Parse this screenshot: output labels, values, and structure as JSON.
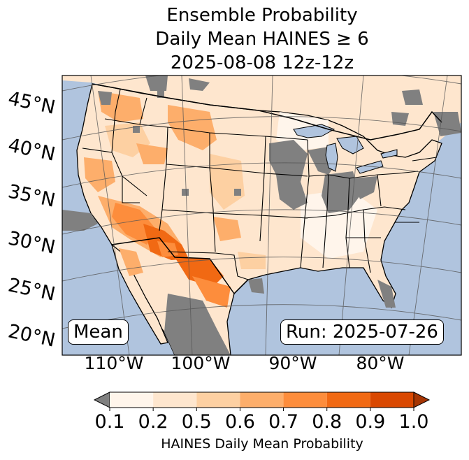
{
  "title": {
    "line1": "Ensemble Probability",
    "line2": "Daily Mean HAINES ≥ 6",
    "line3": "2025-08-08 12z-12z"
  },
  "map": {
    "region": "CONUS",
    "ocean_color": "#b0c4de",
    "missing_color": "#808080",
    "lat_labels": [
      "45°N",
      "40°N",
      "35°N",
      "30°N",
      "25°N",
      "20°N"
    ],
    "lon_labels": [
      "110°W",
      "100°W",
      "90°W",
      "80°W"
    ],
    "stat_label": "Mean",
    "run_label": "Run: 2025-07-26"
  },
  "colorbar": {
    "ticks": [
      "0.1",
      "0.2",
      "0.5",
      "0.6",
      "0.7",
      "0.8",
      "0.9",
      "1.0"
    ],
    "colors": [
      "#fff5eb",
      "#fee6ce",
      "#fdd0a2",
      "#fdae6b",
      "#fd8d3c",
      "#f16913",
      "#d94801"
    ],
    "under_color": "#808080",
    "over_color": "#a63603",
    "label": "HAINES Daily Mean Probability"
  }
}
